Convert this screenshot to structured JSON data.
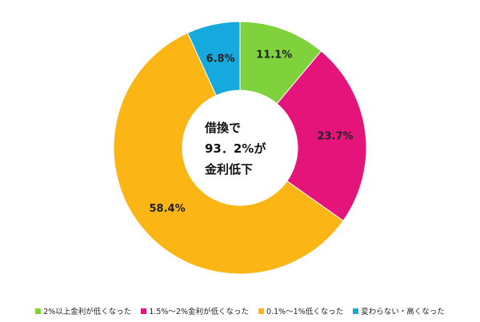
{
  "chart_data": {
    "type": "pie",
    "donut": true,
    "center_text": [
      "借換で",
      "93．2%が",
      "金利低下"
    ],
    "slices": [
      {
        "label": "2%以上金利が低くなった",
        "value": 11.1,
        "display": "11.1%",
        "color": "#80d23c"
      },
      {
        "label": "1.5%～2%金利が低くなった",
        "value": 23.7,
        "display": "23.7%",
        "color": "#e5147a"
      },
      {
        "label": "0.1%～1%低くなった",
        "value": 58.4,
        "display": "58.4%",
        "color": "#fbb514"
      },
      {
        "label": "変わらない・高くなった",
        "value": 6.8,
        "display": "6.8%",
        "color": "#15a9dd"
      }
    ],
    "legend_position": "bottom"
  }
}
